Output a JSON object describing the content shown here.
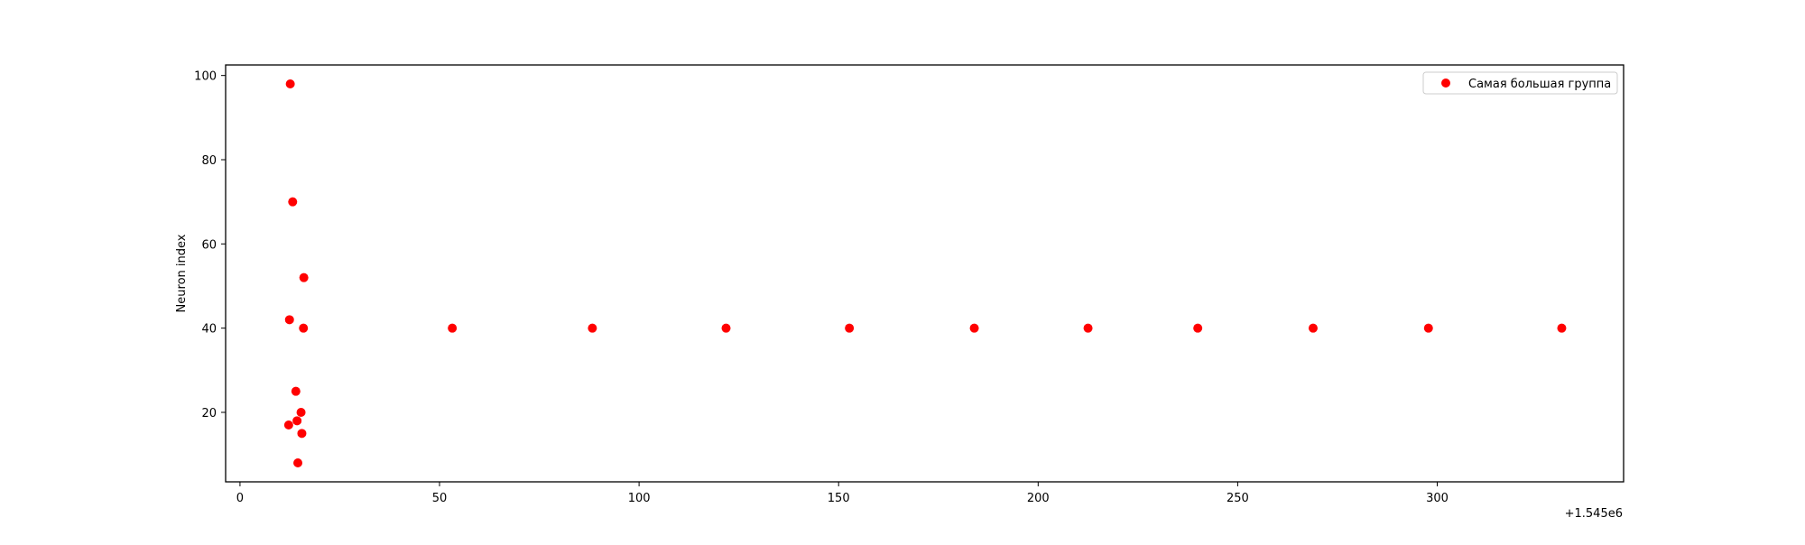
{
  "chart_data": {
    "type": "scatter",
    "title": "",
    "xlabel": "",
    "ylabel": "Neuron index",
    "x_offset_label": "+1.545e6",
    "xlim": [
      -3.6,
      346.7
    ],
    "ylim": [
      3.5,
      102.5
    ],
    "x_ticks": [
      0,
      50,
      100,
      150,
      200,
      250,
      300
    ],
    "y_ticks": [
      20,
      40,
      60,
      80,
      100
    ],
    "grid": false,
    "legend_position": "top-right",
    "series": [
      {
        "name": "Самая большая группа",
        "color": "#ff0000",
        "points": [
          {
            "x": 12.6,
            "y": 98
          },
          {
            "x": 13.2,
            "y": 70
          },
          {
            "x": 16.0,
            "y": 52
          },
          {
            "x": 12.4,
            "y": 42
          },
          {
            "x": 15.9,
            "y": 40
          },
          {
            "x": 14.0,
            "y": 25
          },
          {
            "x": 15.3,
            "y": 20
          },
          {
            "x": 14.3,
            "y": 18
          },
          {
            "x": 12.2,
            "y": 17
          },
          {
            "x": 15.5,
            "y": 15
          },
          {
            "x": 14.5,
            "y": 8
          },
          {
            "x": 53.2,
            "y": 40
          },
          {
            "x": 88.3,
            "y": 40
          },
          {
            "x": 121.8,
            "y": 40
          },
          {
            "x": 152.7,
            "y": 40
          },
          {
            "x": 184.0,
            "y": 40
          },
          {
            "x": 212.5,
            "y": 40
          },
          {
            "x": 240.0,
            "y": 40
          },
          {
            "x": 268.9,
            "y": 40
          },
          {
            "x": 297.8,
            "y": 40
          },
          {
            "x": 331.2,
            "y": 40
          }
        ]
      }
    ]
  }
}
